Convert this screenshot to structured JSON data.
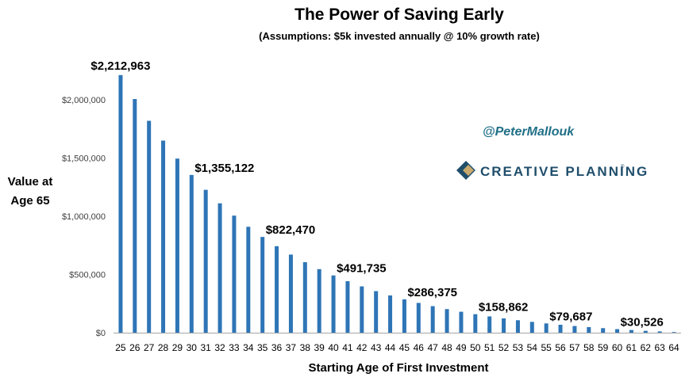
{
  "colors": {
    "bar": "#2E75B6",
    "axis": "#A6A6A6",
    "handle": "#1F6F86",
    "brand": "#1F4E6B",
    "logo_gold": "#C9A96E"
  },
  "chart_data": {
    "type": "bar",
    "title": "The Power of Saving Early",
    "subtitle": "(Assumptions: $5k invested annually @ 10% growth rate)",
    "xlabel": "Starting Age of First Investment",
    "ylabel_line1": "Value at",
    "ylabel_line2": "Age 65",
    "ylim": [
      0,
      2300000
    ],
    "yticks": [
      {
        "value": 0,
        "label": "$0"
      },
      {
        "value": 500000,
        "label": "$500,000"
      },
      {
        "value": 1000000,
        "label": "$1,000,000"
      },
      {
        "value": 1500000,
        "label": "$1,500,000"
      },
      {
        "value": 2000000,
        "label": "$2,000,000"
      }
    ],
    "categories": [
      "25",
      "26",
      "27",
      "28",
      "29",
      "30",
      "31",
      "32",
      "33",
      "34",
      "35",
      "36",
      "37",
      "38",
      "39",
      "40",
      "41",
      "42",
      "43",
      "44",
      "45",
      "46",
      "47",
      "48",
      "49",
      "50",
      "51",
      "52",
      "53",
      "54",
      "55",
      "56",
      "57",
      "58",
      "59",
      "60",
      "61",
      "62",
      "63",
      "64"
    ],
    "values": [
      2212963,
      2007239,
      1820217,
      1650197,
      1495634,
      1355122,
      1227384,
      1111258,
      1005689,
      909717,
      822470,
      743155,
      671050,
      605500,
      545909,
      491735,
      442486,
      397714,
      357014,
      320013,
      286375,
      255796,
      228005,
      202742,
      179774,
      158862,
      139896,
      122655,
      106981,
      92730,
      79687,
      68016,
      57405,
      47759,
      38990,
      30526,
      23100,
      16051,
      11000,
      5500
    ],
    "data_labels": [
      {
        "index": 0,
        "text": "$2,212,963"
      },
      {
        "index": 5,
        "text": "$1,355,122"
      },
      {
        "index": 10,
        "text": "$822,470"
      },
      {
        "index": 15,
        "text": "$491,735"
      },
      {
        "index": 20,
        "text": "$286,375"
      },
      {
        "index": 25,
        "text": "$158,862"
      },
      {
        "index": 30,
        "text": "$79,687"
      },
      {
        "index": 35,
        "text": "$30,526"
      }
    ],
    "grid": false,
    "legend": "none"
  },
  "annotations": {
    "handle": "@PeterMallouk",
    "brand": "CREATIVE PLANNING",
    "trademark": "®"
  }
}
